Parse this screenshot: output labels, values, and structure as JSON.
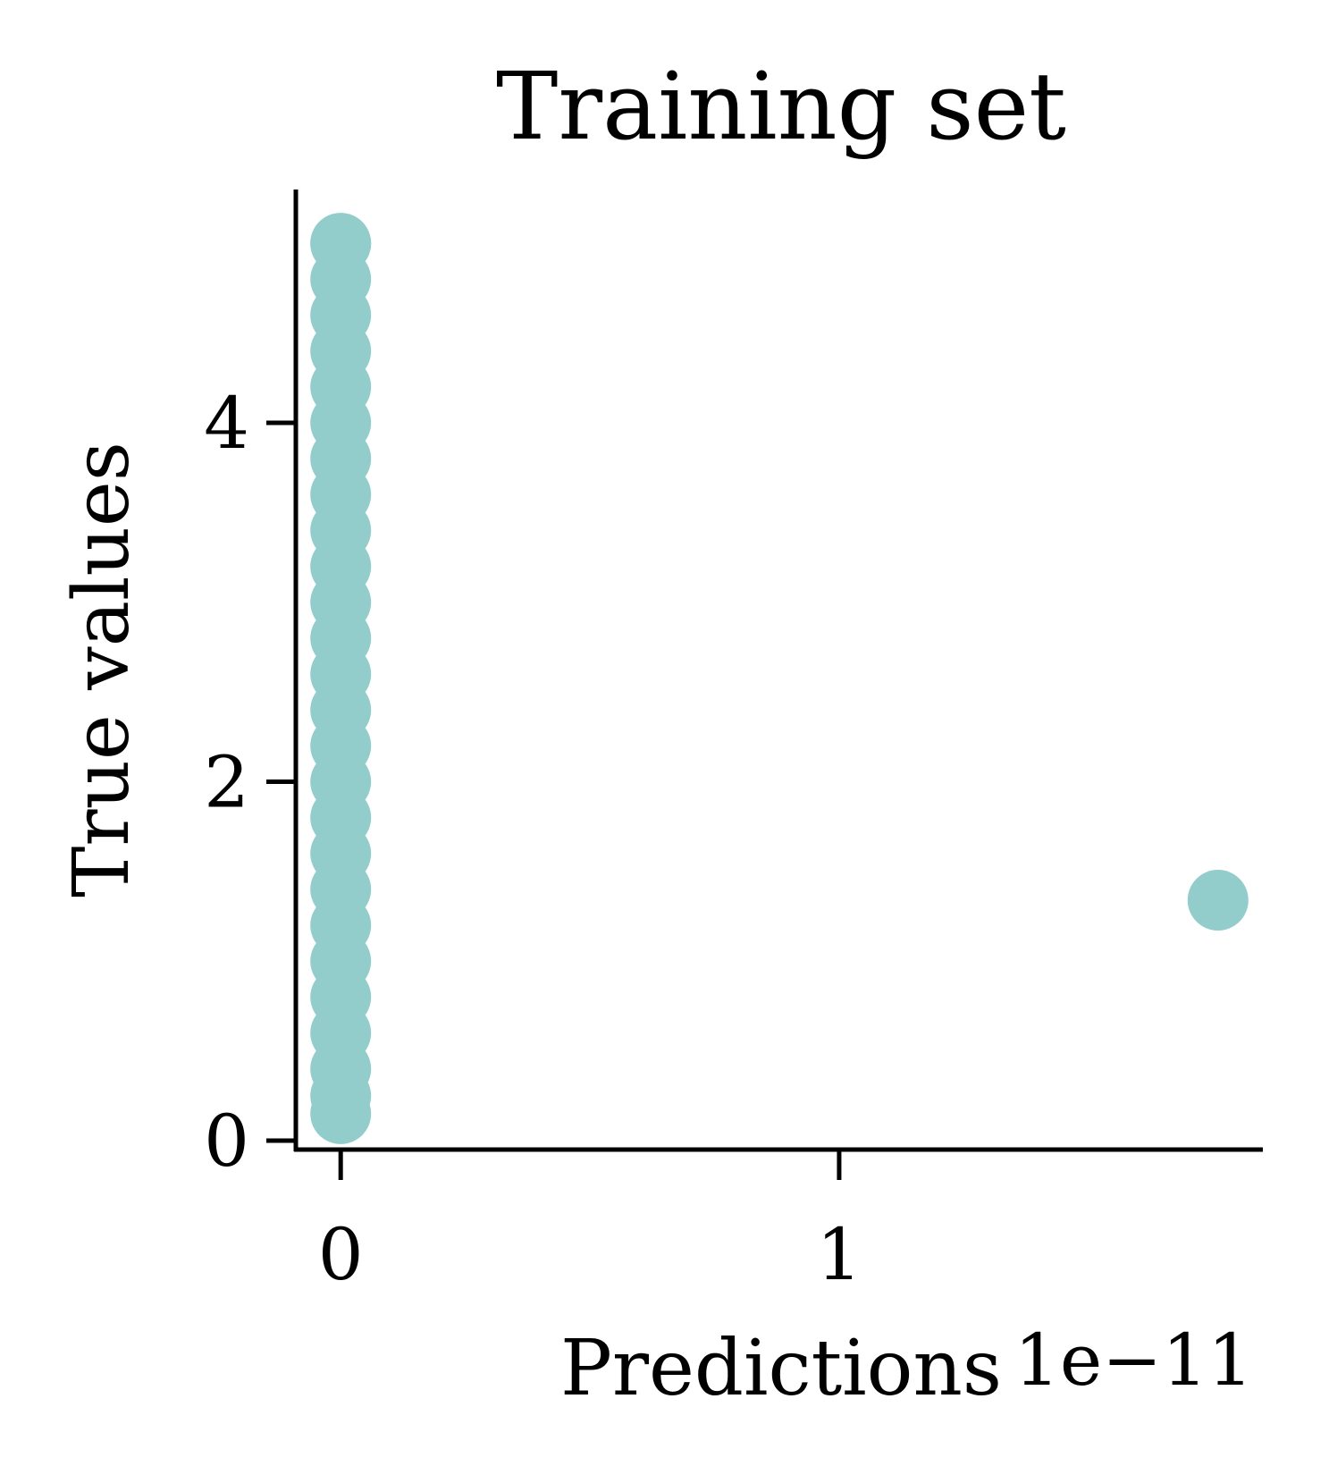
{
  "chart_data": {
    "type": "scatter",
    "title": "Training set",
    "xlabel": "Predictions",
    "ylabel": "True values",
    "x_offset_label": "1e−11",
    "xlim": [
      -0.09,
      1.85
    ],
    "ylim": [
      -0.05,
      5.3
    ],
    "x_ticks": [
      0,
      1
    ],
    "x_tick_labels": [
      "0",
      "1"
    ],
    "y_ticks": [
      0,
      2,
      4
    ],
    "y_tick_labels": [
      "0",
      "2",
      "4"
    ],
    "grid": false,
    "point_color": "#92cdcc",
    "series": [
      {
        "points": [
          {
            "x": 0,
            "y": 0.15
          },
          {
            "x": 0,
            "y": 0.25
          },
          {
            "x": 0,
            "y": 0.4
          },
          {
            "x": 0,
            "y": 0.6
          },
          {
            "x": 0,
            "y": 0.8
          },
          {
            "x": 0,
            "y": 1.0
          },
          {
            "x": 0,
            "y": 1.2
          },
          {
            "x": 0,
            "y": 1.4
          },
          {
            "x": 0,
            "y": 1.6
          },
          {
            "x": 0,
            "y": 1.8
          },
          {
            "x": 0,
            "y": 2.0
          },
          {
            "x": 0,
            "y": 2.2
          },
          {
            "x": 0,
            "y": 2.4
          },
          {
            "x": 0,
            "y": 2.6
          },
          {
            "x": 0,
            "y": 2.8
          },
          {
            "x": 0,
            "y": 3.0
          },
          {
            "x": 0,
            "y": 3.2
          },
          {
            "x": 0,
            "y": 3.4
          },
          {
            "x": 0,
            "y": 3.6
          },
          {
            "x": 0,
            "y": 3.8
          },
          {
            "x": 0,
            "y": 4.0
          },
          {
            "x": 0,
            "y": 4.2
          },
          {
            "x": 0,
            "y": 4.4
          },
          {
            "x": 0,
            "y": 4.6
          },
          {
            "x": 0,
            "y": 4.8
          },
          {
            "x": 0,
            "y": 5.0
          },
          {
            "x": 0,
            "y": 5.0
          },
          {
            "x": 1.76,
            "y": 1.34
          }
        ]
      }
    ]
  }
}
